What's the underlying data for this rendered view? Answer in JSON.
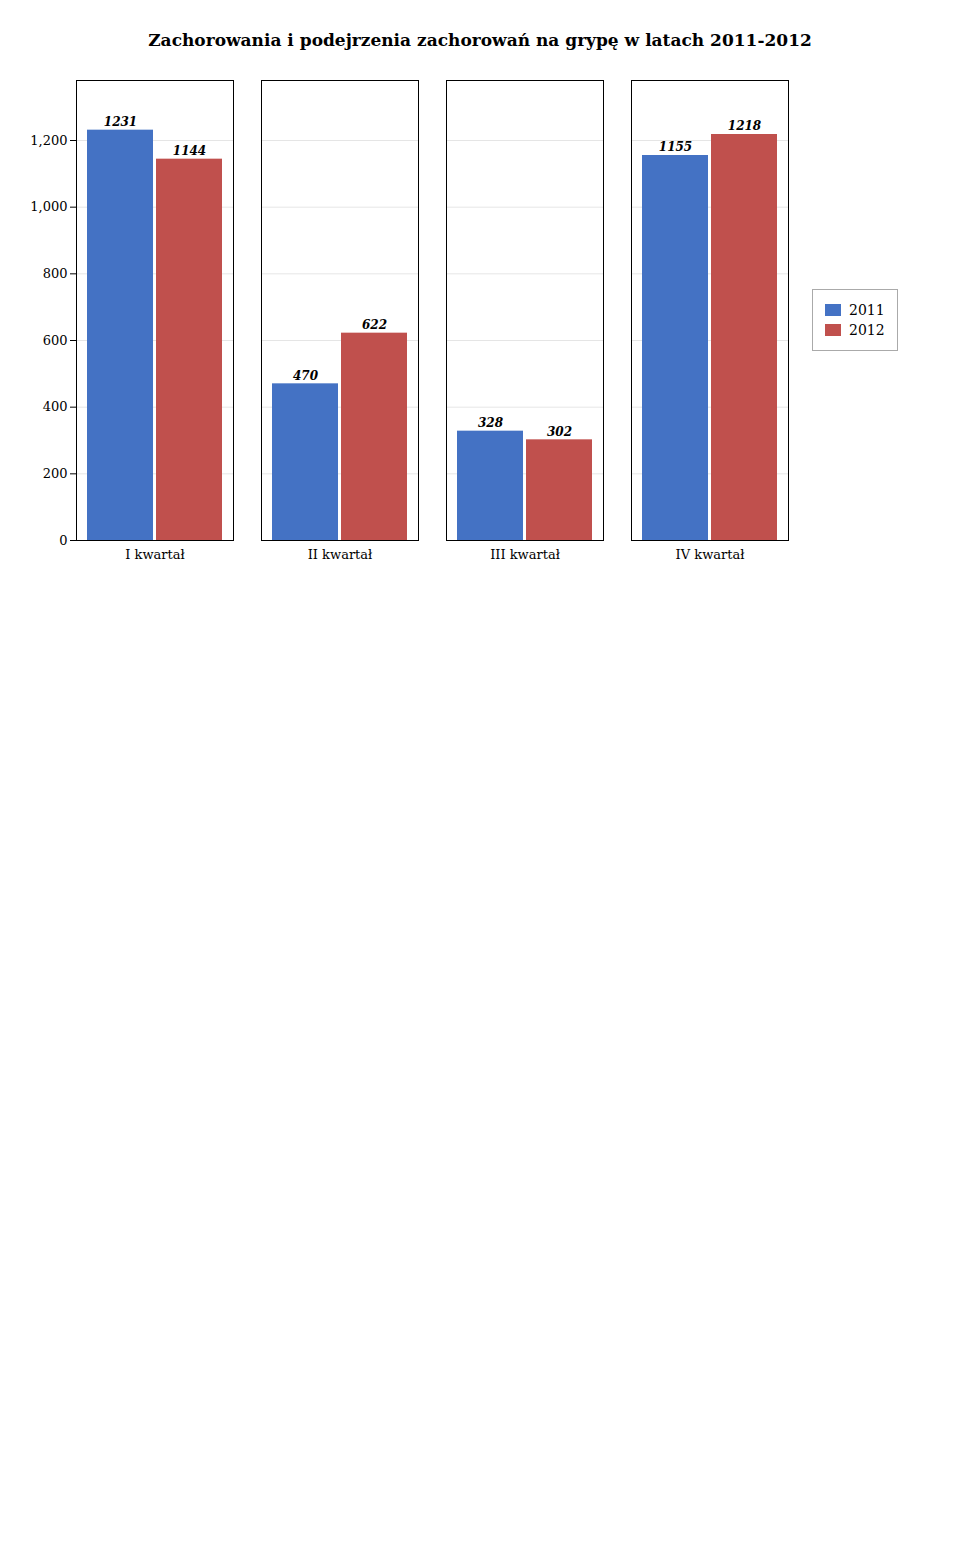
{
  "chart_data": {
    "type": "bar",
    "title": "Zachorowania i podejrzenia zachorowań na grypę w latach 2011-2012",
    "categories": [
      "I kwartał",
      "II kwartał",
      "III kwartał",
      "IV kwartał"
    ],
    "series": [
      {
        "name": "2011",
        "color": "#4472C4",
        "values": [
          1231,
          470,
          328,
          1155
        ]
      },
      {
        "name": "2012",
        "color": "#C0504D",
        "values": [
          1144,
          622,
          302,
          1218
        ]
      }
    ],
    "ylim": [
      0,
      1380
    ],
    "yticks": [
      0,
      200,
      400,
      600,
      800,
      1000,
      1200
    ],
    "grid": true,
    "legend": "right",
    "data_labels": true
  }
}
